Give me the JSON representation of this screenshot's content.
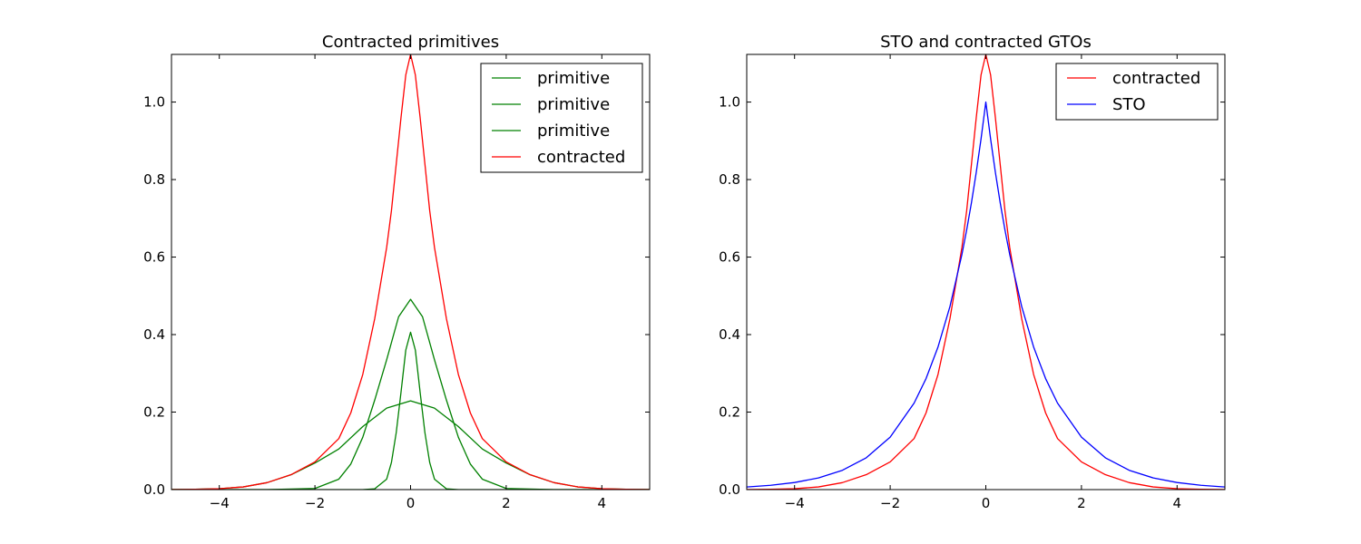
{
  "chart_data": [
    {
      "type": "line",
      "title": "Contracted primitives",
      "xlim": [
        -5,
        5
      ],
      "ylim": [
        0,
        1.123
      ],
      "xticks": [
        -4,
        -2,
        0,
        2,
        4
      ],
      "xtick_labels": [
        "−4",
        "−2",
        "0",
        "2",
        "4"
      ],
      "yticks": [
        0.0,
        0.2,
        0.4,
        0.6,
        0.8,
        1.0
      ],
      "ytick_labels": [
        "0.0",
        "0.2",
        "0.4",
        "0.6",
        "0.8",
        "1.0"
      ],
      "legend_position": "top-right",
      "series": [
        {
          "name": "primitive",
          "color": "#008000",
          "x": [
            -5,
            -4,
            -3,
            -2,
            -1.5,
            -1,
            -0.75,
            -0.5,
            -0.4,
            -0.3,
            -0.2,
            -0.1,
            0,
            0.1,
            0.2,
            0.3,
            0.4,
            0.5,
            0.75,
            1,
            1.5,
            2,
            3,
            4,
            5
          ],
          "y": [
            0,
            0,
            0,
            0,
            0,
            0,
            0.002,
            0.027,
            0.07,
            0.147,
            0.251,
            0.36,
            0.406,
            0.36,
            0.251,
            0.147,
            0.07,
            0.027,
            0.002,
            0,
            0,
            0,
            0,
            0,
            0
          ]
        },
        {
          "name": "primitive",
          "color": "#008000",
          "x": [
            -5,
            -4,
            -3,
            -2,
            -1.5,
            -1.25,
            -1,
            -0.75,
            -0.5,
            -0.25,
            0,
            0.25,
            0.5,
            0.75,
            1,
            1.25,
            1.5,
            2,
            3,
            4,
            5
          ],
          "y": [
            0,
            0,
            0,
            0.003,
            0.027,
            0.066,
            0.135,
            0.231,
            0.335,
            0.446,
            0.491,
            0.446,
            0.335,
            0.231,
            0.135,
            0.066,
            0.027,
            0.003,
            0,
            0,
            0
          ],
          "label_shared": true
        },
        {
          "name": "primitive",
          "color": "#008000",
          "x": [
            -5,
            -4.5,
            -4,
            -3.5,
            -3,
            -2.5,
            -2,
            -1.5,
            -1,
            -0.5,
            0,
            0.5,
            1,
            1.5,
            2,
            2.5,
            3,
            3.5,
            4,
            4.5,
            5
          ],
          "y": [
            0.0002,
            0.0007,
            0.0024,
            0.0069,
            0.018,
            0.0382,
            0.0685,
            0.1048,
            0.1626,
            0.2102,
            0.229,
            0.2102,
            0.1626,
            0.1048,
            0.0685,
            0.0382,
            0.018,
            0.0069,
            0.0024,
            0.0007,
            0.0002
          ]
        },
        {
          "name": "contracted",
          "color": "#ff0000",
          "x": [
            -5,
            -4.5,
            -4,
            -3.5,
            -3,
            -2.5,
            -2,
            -1.5,
            -1.25,
            -1,
            -0.75,
            -0.5,
            -0.4,
            -0.3,
            -0.2,
            -0.1,
            0,
            0.1,
            0.2,
            0.3,
            0.4,
            0.5,
            0.75,
            1,
            1.25,
            1.5,
            2,
            2.5,
            3,
            3.5,
            4,
            4.5,
            5
          ],
          "y": [
            0.0002,
            0.0007,
            0.0024,
            0.0069,
            0.018,
            0.0385,
            0.0715,
            0.1318,
            0.198,
            0.297,
            0.441,
            0.625,
            0.72,
            0.84,
            0.96,
            1.07,
            1.123,
            1.07,
            0.96,
            0.84,
            0.72,
            0.625,
            0.441,
            0.297,
            0.198,
            0.1318,
            0.0715,
            0.0385,
            0.018,
            0.0069,
            0.0024,
            0.0007,
            0.0002
          ]
        }
      ]
    },
    {
      "type": "line",
      "title": "STO and contracted GTOs",
      "xlim": [
        -5,
        5
      ],
      "ylim": [
        0,
        1.123
      ],
      "xticks": [
        -4,
        -2,
        0,
        2,
        4
      ],
      "xtick_labels": [
        "−4",
        "−2",
        "0",
        "2",
        "4"
      ],
      "yticks": [
        0.0,
        0.2,
        0.4,
        0.6,
        0.8,
        1.0
      ],
      "ytick_labels": [
        "0.0",
        "0.2",
        "0.4",
        "0.6",
        "0.8",
        "1.0"
      ],
      "legend_position": "top-right",
      "series": [
        {
          "name": "contracted",
          "color": "#ff0000",
          "x": [
            -5,
            -4.5,
            -4,
            -3.5,
            -3,
            -2.5,
            -2,
            -1.5,
            -1.25,
            -1,
            -0.75,
            -0.5,
            -0.4,
            -0.3,
            -0.2,
            -0.1,
            0,
            0.1,
            0.2,
            0.3,
            0.4,
            0.5,
            0.75,
            1,
            1.25,
            1.5,
            2,
            2.5,
            3,
            3.5,
            4,
            4.5,
            5
          ],
          "y": [
            0.0002,
            0.0007,
            0.0024,
            0.0069,
            0.018,
            0.0385,
            0.0715,
            0.1318,
            0.198,
            0.297,
            0.441,
            0.625,
            0.72,
            0.84,
            0.96,
            1.07,
            1.123,
            1.07,
            0.96,
            0.84,
            0.72,
            0.625,
            0.441,
            0.297,
            0.198,
            0.1318,
            0.0715,
            0.0385,
            0.018,
            0.0069,
            0.0024,
            0.0007,
            0.0002
          ]
        },
        {
          "name": "STO",
          "color": "#0000ff",
          "x": [
            -5,
            -4.5,
            -4,
            -3.5,
            -3,
            -2.5,
            -2,
            -1.5,
            -1.25,
            -1,
            -0.75,
            -0.5,
            -0.4,
            -0.3,
            -0.2,
            -0.1,
            0,
            0.1,
            0.2,
            0.3,
            0.4,
            0.5,
            0.75,
            1,
            1.25,
            1.5,
            2,
            2.5,
            3,
            3.5,
            4,
            4.5,
            5
          ],
          "y": [
            0.0067,
            0.0111,
            0.0183,
            0.0302,
            0.0498,
            0.0821,
            0.1353,
            0.2231,
            0.2865,
            0.3679,
            0.4724,
            0.6065,
            0.6703,
            0.7408,
            0.8187,
            0.9048,
            1.0,
            0.9048,
            0.8187,
            0.7408,
            0.6703,
            0.6065,
            0.4724,
            0.3679,
            0.2865,
            0.2231,
            0.1353,
            0.0821,
            0.0498,
            0.0302,
            0.0183,
            0.0111,
            0.0067
          ]
        }
      ]
    }
  ]
}
